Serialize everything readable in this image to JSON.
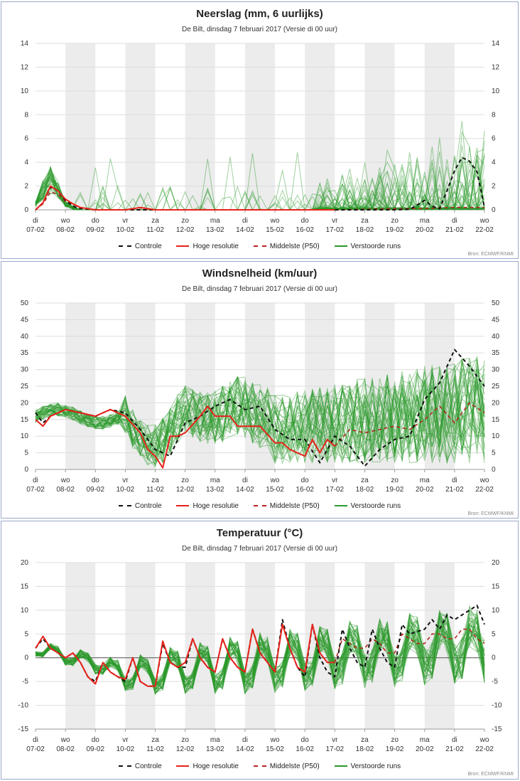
{
  "common": {
    "subtitle": "De Bilt, dinsdag 7 februari 2017 (Versie di 00 uur)",
    "source": "Bron: ECMWF/KNMI",
    "legend": [
      "Controle",
      "Hoge resolutie",
      "Middelste (P50)",
      "Verstoorde runs"
    ],
    "day_names": [
      "di",
      "wo",
      "do",
      "vr",
      "za",
      "zo",
      "ma",
      "di",
      "wo",
      "do",
      "vr",
      "za",
      "zo",
      "ma",
      "di",
      "wo"
    ],
    "dates": [
      "07-02",
      "08-02",
      "09-02",
      "10-02",
      "11-02",
      "12-02",
      "13-02",
      "14-02",
      "15-02",
      "16-02",
      "17-02",
      "18-02",
      "19-02",
      "20-02",
      "21-02",
      "22-02"
    ],
    "colors": {
      "control": "#111111",
      "hires": "#e8221b",
      "median": "#b3261e",
      "ensemble": "#2a9a2a",
      "band": "#ececec",
      "grid": "#dddddd"
    }
  },
  "chart_data": [
    {
      "type": "line",
      "title": "Neerslag (mm, 6 uurlijks)",
      "ylim": [
        0,
        14
      ],
      "yticks": [
        0,
        2,
        4,
        6,
        8,
        10,
        12,
        14
      ],
      "x_unit": "days since 07-02 00 uur",
      "series": [
        {
          "name": "Controle",
          "x": [
            0,
            0.25,
            0.5,
            0.75,
            1,
            1.25,
            1.5,
            2,
            3,
            4,
            5,
            6,
            7,
            8,
            9,
            10,
            11,
            12,
            12.5,
            12.75,
            13,
            13.25,
            13.5,
            13.75,
            14,
            14.25,
            14.5,
            14.75,
            15
          ],
          "values": [
            0,
            0.6,
            1.9,
            1.6,
            0.8,
            0.3,
            0.1,
            0,
            0,
            0,
            0,
            0,
            0,
            0,
            0,
            0,
            0,
            0,
            0.05,
            0.4,
            0.8,
            0.3,
            0.1,
            1.6,
            3.3,
            4.4,
            4.1,
            3.2,
            0.2
          ]
        },
        {
          "name": "Hoge resolutie",
          "x": [
            0,
            0.25,
            0.5,
            0.75,
            1,
            1.25,
            1.5,
            2,
            3,
            3.5,
            4,
            5,
            6,
            7,
            8,
            9,
            10
          ],
          "values": [
            0,
            0.6,
            2.0,
            1.6,
            0.9,
            0.5,
            0.2,
            0,
            0,
            0.2,
            0,
            0,
            0,
            0,
            0,
            0,
            0
          ]
        },
        {
          "name": "Middelste (P50)",
          "x": [
            0,
            0.25,
            0.5,
            0.75,
            1,
            1.5,
            2,
            5,
            10,
            11,
            12,
            13,
            14,
            15
          ],
          "values": [
            0,
            0.5,
            1.5,
            1.3,
            0.7,
            0.2,
            0,
            0,
            0,
            0.05,
            0.1,
            0.1,
            0.2,
            0.2
          ]
        }
      ]
    },
    {
      "type": "line",
      "title": "Windsnelheid (km/uur)",
      "ylim": [
        0,
        50
      ],
      "yticks": [
        0,
        5,
        10,
        15,
        20,
        25,
        30,
        35,
        40,
        45,
        50
      ],
      "x_unit": "days since 07-02 00 uur",
      "series": [
        {
          "name": "Controle",
          "x": [
            0,
            0.25,
            0.5,
            1,
            1.5,
            2,
            2.5,
            3,
            3.5,
            4,
            4.5,
            5,
            5.5,
            6,
            6.5,
            7,
            7.5,
            8,
            8.5,
            9,
            9.5,
            10,
            10.5,
            11,
            11.5,
            12,
            12.5,
            13,
            13.5,
            14,
            14.5,
            15
          ],
          "values": [
            17,
            14,
            16,
            18,
            17,
            16,
            18,
            17,
            12,
            6,
            4,
            14,
            16,
            19,
            21,
            18,
            19,
            12,
            9,
            9,
            2,
            10,
            7,
            1,
            6,
            9,
            10,
            21,
            26,
            36,
            31,
            25
          ]
        },
        {
          "name": "Hoge resolutie",
          "x": [
            0,
            0.25,
            0.5,
            1,
            1.5,
            2,
            2.5,
            3,
            3.5,
            3.75,
            4,
            4.25,
            4.5,
            4.75,
            5,
            5.5,
            5.75,
            6,
            6.5,
            6.75,
            7,
            7.5,
            8,
            8.25,
            8.5,
            9,
            9.25,
            9.5,
            9.75,
            10
          ],
          "values": [
            15,
            13,
            16,
            18,
            17,
            16,
            18,
            16,
            11,
            6,
            4,
            0.5,
            10,
            10,
            11,
            16,
            19,
            16,
            16,
            13,
            13,
            13,
            8,
            8,
            6,
            4,
            9,
            5,
            9,
            7
          ]
        },
        {
          "name": "Middelste (P50)",
          "x": [
            10,
            10.5,
            11,
            11.5,
            12,
            12.5,
            13,
            13.5,
            14,
            14.5,
            15
          ],
          "values": [
            7,
            12,
            11,
            12,
            13,
            12,
            15,
            19,
            14,
            20,
            17
          ]
        }
      ]
    },
    {
      "type": "line",
      "title": "Temperatuur (°C)",
      "ylim": [
        -15,
        20
      ],
      "yticks": [
        -15,
        -10,
        -5,
        0,
        5,
        10,
        15,
        20
      ],
      "x_unit": "days since 07-02 00 uur",
      "series": [
        {
          "name": "Controle",
          "x": [
            0,
            0.25,
            0.5,
            1,
            1.25,
            1.5,
            1.75,
            2,
            2.25,
            2.5,
            2.75,
            3,
            3.25,
            3.5,
            3.75,
            4,
            4.25,
            4.5,
            4.75,
            5,
            5.25,
            5.5,
            5.75,
            6,
            6.25,
            6.5,
            6.75,
            7,
            7.25,
            7.5,
            7.75,
            8,
            8.25,
            8.5,
            8.75,
            9,
            9.25,
            9.5,
            9.75,
            10,
            10.25,
            10.5,
            10.75,
            11,
            11.25,
            11.5,
            11.75,
            12,
            12.25,
            12.5,
            13,
            13.25,
            13.5,
            13.75,
            14,
            14.25,
            14.5,
            14.75,
            15
          ],
          "values": [
            2,
            4,
            2,
            0,
            1,
            -1,
            -4,
            -5,
            -1,
            -3,
            -4,
            -5,
            0,
            -5,
            -6,
            -6,
            3,
            -1,
            -2,
            -2,
            4,
            0,
            -2,
            -3,
            4,
            0,
            -2,
            -3,
            6,
            1,
            -1,
            -3,
            8,
            2,
            -2,
            -4,
            7,
            0,
            -3,
            -4,
            6,
            2,
            -1,
            -2,
            6,
            2,
            -1,
            -2,
            7,
            5,
            6,
            8,
            6,
            9,
            8,
            9,
            10,
            11,
            7
          ]
        },
        {
          "name": "Hoge resolutie",
          "x": [
            0,
            0.25,
            0.5,
            1,
            1.25,
            1.5,
            1.75,
            2,
            2.25,
            2.5,
            2.75,
            3,
            3.25,
            3.5,
            3.75,
            4,
            4.25,
            4.5,
            4.75,
            5,
            5.25,
            5.5,
            5.75,
            6,
            6.25,
            6.5,
            6.75,
            7,
            7.25,
            7.5,
            7.75,
            8,
            8.25,
            8.5,
            8.75,
            9,
            9.25,
            9.5,
            9.75,
            10
          ],
          "values": [
            2,
            4.5,
            2,
            0,
            1,
            -1,
            -4,
            -5.5,
            -1,
            -3,
            -4,
            -4.5,
            0,
            -5,
            -6,
            -6,
            3.5,
            -1,
            -2,
            -1,
            4,
            0,
            -2,
            -3,
            4,
            0,
            -2,
            -3,
            6,
            1,
            -1,
            -3,
            7,
            2,
            -2,
            -3,
            7,
            1,
            -1,
            -1
          ]
        },
        {
          "name": "Middelste (P50)",
          "x": [
            10,
            10.25,
            10.5,
            10.75,
            11,
            11.25,
            11.5,
            11.75,
            12,
            12.25,
            12.5,
            12.75,
            13,
            13.25,
            13.5,
            13.75,
            14,
            14.25,
            14.5,
            14.75,
            15
          ],
          "values": [
            -1,
            4,
            3,
            2,
            2,
            4,
            3,
            1,
            1,
            5,
            4,
            3,
            3,
            5,
            5,
            4,
            4,
            6,
            6,
            4,
            3
          ]
        }
      ]
    }
  ]
}
